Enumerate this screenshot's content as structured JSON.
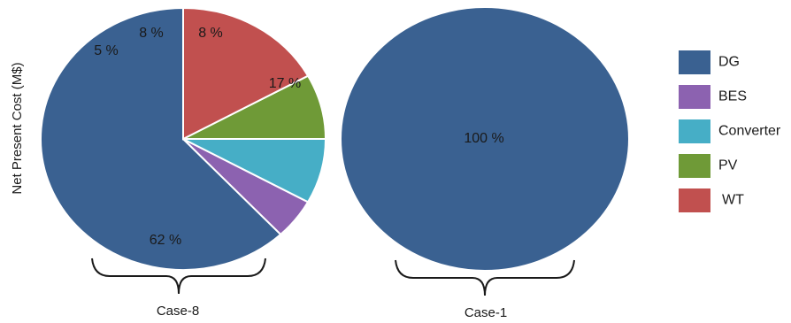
{
  "chart_data": {
    "type": "pie",
    "ylabel": "Net Present Cost (M$)",
    "unit": "%",
    "legend": {
      "placement": "right",
      "entries": [
        {
          "name": "DG",
          "color": "#3a6191"
        },
        {
          "name": "BES",
          "color": "#8c62b0"
        },
        {
          "name": "Converter",
          "color": "#46aec6"
        },
        {
          "name": "PV",
          "color": "#6f9a37"
        },
        {
          "name": "WT",
          "color": "#c1504f"
        }
      ]
    },
    "pies": [
      {
        "case": "Case-8",
        "slices": [
          {
            "name": "DG",
            "value": 62,
            "label": "62 %",
            "color": "#3a6191"
          },
          {
            "name": "BES",
            "value": 5,
            "label": "5 %",
            "color": "#8c62b0"
          },
          {
            "name": "Converter",
            "value": 8,
            "label": "8 %",
            "color": "#46aec6"
          },
          {
            "name": "PV",
            "value": 8,
            "label": "8 %",
            "color": "#6f9a37"
          },
          {
            "name": "WT",
            "value": 17,
            "label": "17 %",
            "color": "#c1504f"
          }
        ]
      },
      {
        "case": "Case-1",
        "slices": [
          {
            "name": "DG",
            "value": 100,
            "label": "100 %",
            "color": "#3a6191"
          }
        ]
      }
    ]
  }
}
